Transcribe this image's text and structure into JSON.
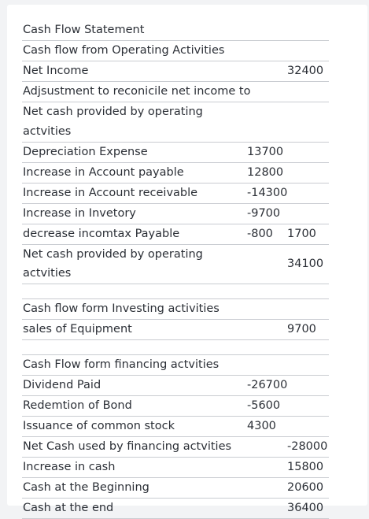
{
  "title": "Cash Flow Statement",
  "operating": {
    "heading": "Cash flow from Operating Activities",
    "net_income_label": "Net Income",
    "net_income_value": "32400",
    "adjust_line1": "Adjsustment to reconicile net income to",
    "adjust_line2": "Net cash provided by operating",
    "adjust_line3": "actvities",
    "items": [
      {
        "label": "Depreciation Expense",
        "c1": "13700",
        "c2": ""
      },
      {
        "label": "Increase in Account payable",
        "c1": "12800",
        "c2": ""
      },
      {
        "label": "Increase in Account receivable",
        "c1": "-14300",
        "c2": ""
      },
      {
        "label": "Increase in Invetory",
        "c1": "-9700",
        "c2": ""
      },
      {
        "label": "decrease incomtax Payable",
        "c1": "-800",
        "c2": "1700"
      }
    ],
    "net_label_line1": "Net cash provided by operating",
    "net_label_line2": "actvities",
    "net_value": "34100"
  },
  "investing": {
    "heading": "Cash flow form Investing activities",
    "item_label": "sales of Equipment",
    "item_value": "9700"
  },
  "financing": {
    "heading": "Cash Flow form financing actvities",
    "items": [
      {
        "label": "Dividend Paid",
        "c1": "-26700",
        "c2": ""
      },
      {
        "label": "Redemtion of Bond",
        "c1": "-5600",
        "c2": ""
      },
      {
        "label": "Issuance of common stock",
        "c1": "4300",
        "c2": ""
      },
      {
        "label": "Net Cash used by financing actvities",
        "c1": "",
        "c2": "-28000"
      }
    ]
  },
  "summary": [
    {
      "label": "Increase in cash",
      "value": "15800"
    },
    {
      "label": "Cash at the Beginning",
      "value": "20600"
    },
    {
      "label": "Cash at the end",
      "value": "36400"
    }
  ]
}
